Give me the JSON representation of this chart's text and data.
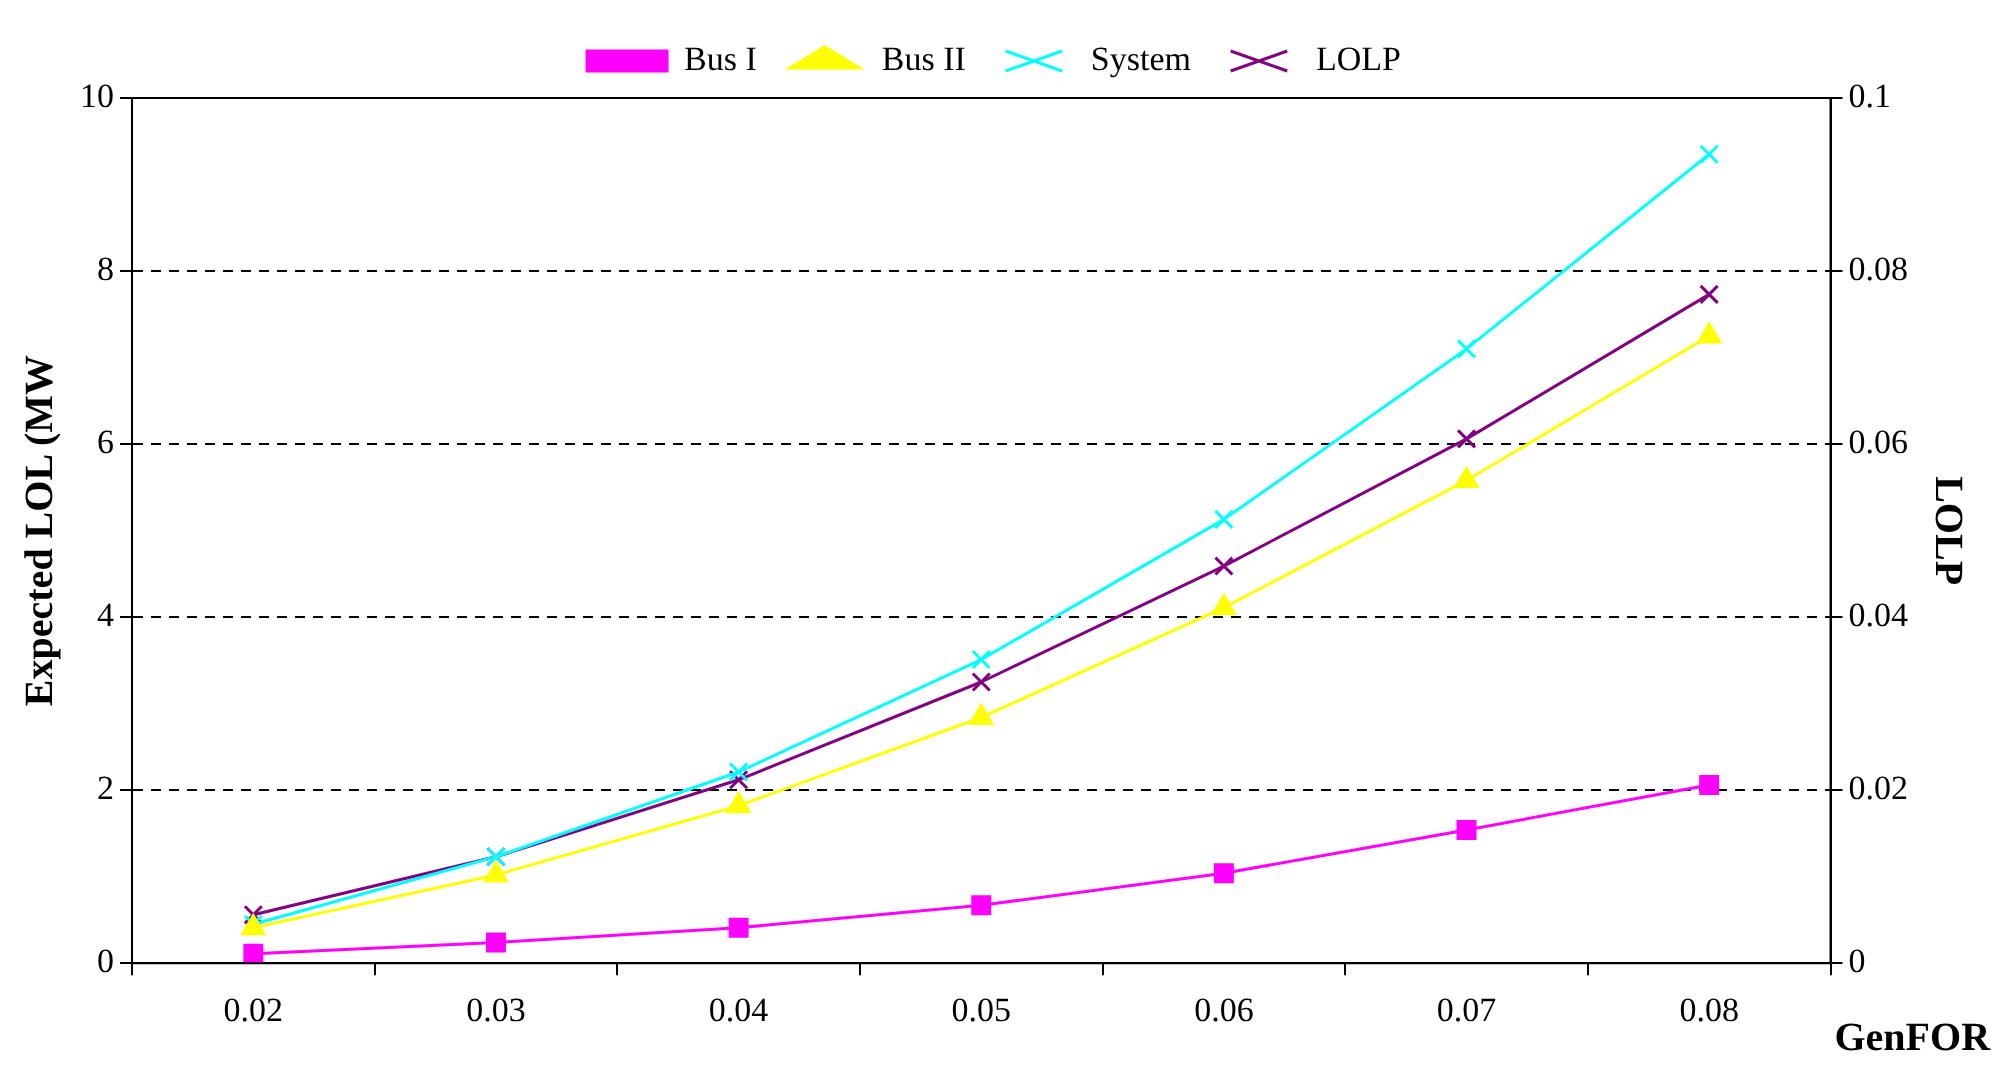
{
  "chart_data": {
    "type": "line",
    "xlabel": "GenFOR",
    "ylabel": "Expected LOL (MW",
    "y2label": "LOLP",
    "categories": [
      "0.02",
      "0.03",
      "0.04",
      "0.05",
      "0.06",
      "0.07",
      "0.08"
    ],
    "series": [
      {
        "name": "Bus I",
        "color": "#ff00ff",
        "marker": "square",
        "values": [
          0.11,
          0.24,
          0.41,
          0.67,
          1.04,
          1.54,
          2.06
        ]
      },
      {
        "name": "Bus II",
        "color": "#ffff00",
        "marker": "triangle",
        "values": [
          0.41,
          1.02,
          1.82,
          2.84,
          4.11,
          5.58,
          7.25
        ]
      },
      {
        "name": "System",
        "color": "#00ffff",
        "marker": "cross",
        "values": [
          0.45,
          1.23,
          2.21,
          3.51,
          5.13,
          7.1,
          9.35
        ]
      },
      {
        "name": "LOLP",
        "color": "#800080",
        "marker": "cross",
        "axis": "y2",
        "values": [
          0.0056,
          0.0123,
          0.0212,
          0.0325,
          0.0459,
          0.0606,
          0.0773
        ]
      }
    ],
    "ylim": [
      0,
      10
    ],
    "yticks": [
      0,
      2,
      4,
      6,
      8,
      10
    ],
    "y2lim": [
      0,
      0.1
    ],
    "y2ticks": [
      0,
      0.02,
      0.04,
      0.06,
      0.08,
      0.1
    ],
    "grid": "y",
    "legend": "top"
  }
}
